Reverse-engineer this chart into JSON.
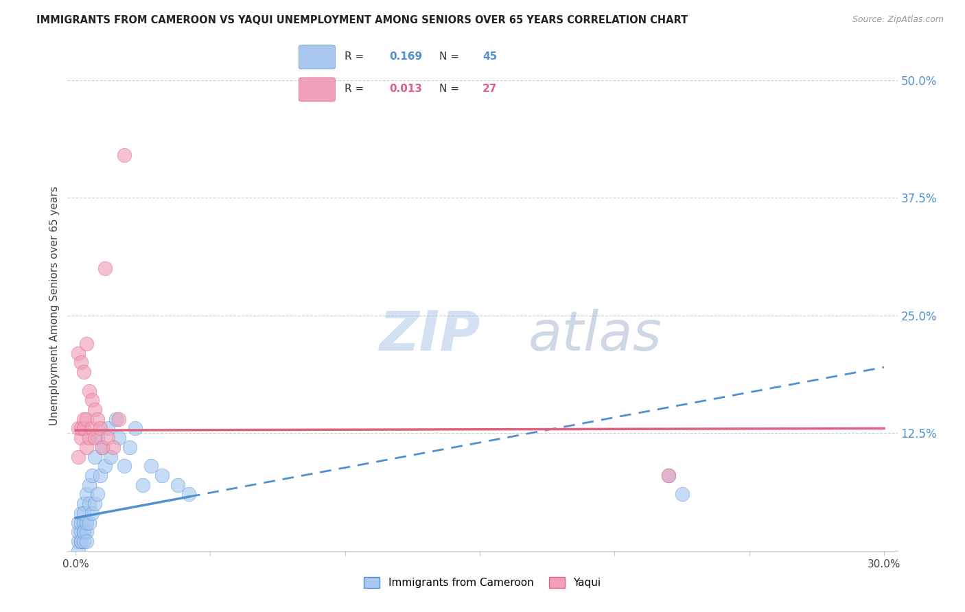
{
  "title": "IMMIGRANTS FROM CAMEROON VS YAQUI UNEMPLOYMENT AMONG SENIORS OVER 65 YEARS CORRELATION CHART",
  "source": "Source: ZipAtlas.com",
  "ylabel": "Unemployment Among Seniors over 65 years",
  "xlim": [
    0.0,
    0.3
  ],
  "ylim": [
    0.0,
    0.52
  ],
  "color_blue": "#A8C8F0",
  "color_pink": "#F0A0B8",
  "color_blue_dark": "#5090D0",
  "color_pink_dark": "#E06080",
  "color_blue_line": "#5090D0",
  "color_pink_line": "#E06080",
  "watermark": "ZIPatlas",
  "watermark_color_zip": "#B0C8E8",
  "watermark_color_atlas": "#90A8C8",
  "legend_label1": "Immigrants from Cameroon",
  "legend_label2": "Yaqui",
  "cameroon_x": [
    0.001,
    0.001,
    0.001,
    0.001,
    0.002,
    0.002,
    0.002,
    0.002,
    0.002,
    0.003,
    0.003,
    0.003,
    0.003,
    0.003,
    0.003,
    0.004,
    0.004,
    0.004,
    0.004,
    0.005,
    0.005,
    0.005,
    0.006,
    0.006,
    0.007,
    0.007,
    0.008,
    0.008,
    0.009,
    0.01,
    0.011,
    0.012,
    0.013,
    0.015,
    0.016,
    0.018,
    0.02,
    0.022,
    0.025,
    0.028,
    0.032,
    0.038,
    0.042,
    0.22,
    0.225
  ],
  "cameroon_y": [
    0.01,
    0.02,
    0.03,
    0.0,
    0.01,
    0.02,
    0.03,
    0.01,
    0.04,
    0.02,
    0.01,
    0.03,
    0.05,
    0.02,
    0.04,
    0.02,
    0.03,
    0.06,
    0.01,
    0.03,
    0.05,
    0.07,
    0.04,
    0.08,
    0.05,
    0.1,
    0.06,
    0.12,
    0.08,
    0.11,
    0.09,
    0.13,
    0.1,
    0.14,
    0.12,
    0.09,
    0.11,
    0.13,
    0.07,
    0.09,
    0.08,
    0.07,
    0.06,
    0.08,
    0.06
  ],
  "yaqui_x": [
    0.001,
    0.001,
    0.001,
    0.002,
    0.002,
    0.002,
    0.003,
    0.003,
    0.003,
    0.004,
    0.004,
    0.004,
    0.005,
    0.005,
    0.006,
    0.006,
    0.007,
    0.007,
    0.008,
    0.009,
    0.01,
    0.011,
    0.012,
    0.014,
    0.016,
    0.018,
    0.22
  ],
  "yaqui_y": [
    0.13,
    0.1,
    0.21,
    0.12,
    0.2,
    0.13,
    0.14,
    0.19,
    0.13,
    0.11,
    0.22,
    0.14,
    0.12,
    0.17,
    0.16,
    0.13,
    0.15,
    0.12,
    0.14,
    0.13,
    0.11,
    0.3,
    0.12,
    0.11,
    0.14,
    0.42,
    0.08
  ],
  "trend_blue_x0": 0.0,
  "trend_blue_x_solid_end": 0.042,
  "trend_blue_x1": 0.3,
  "trend_blue_y0": 0.035,
  "trend_blue_y1": 0.195,
  "trend_pink_x0": 0.0,
  "trend_pink_x1": 0.3,
  "trend_pink_y0": 0.128,
  "trend_pink_y1": 0.13
}
